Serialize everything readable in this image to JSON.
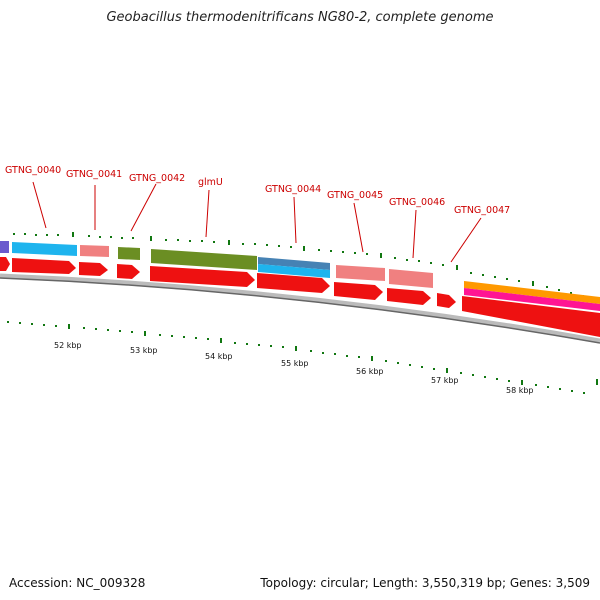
{
  "title": "Geobacillus thermodenitrificans NG80-2, complete genome",
  "footer": {
    "accession_label": "Accession: NC_009328",
    "summary": "Topology: circular; Length: 3,550,319 bp; Genes: 3,509"
  },
  "colors": {
    "cds": "#ee1111",
    "label": "#cc0000",
    "backbone": "#888888",
    "tick": "#117711"
  },
  "gene_labels": [
    "GTNG_0040",
    "GTNG_0041",
    "GTNG_0042",
    "glmU",
    "GTNG_0044",
    "GTNG_0045",
    "GTNG_0046",
    "GTNG_0047"
  ],
  "kbp_labels": [
    "52 kbp",
    "53 kbp",
    "54 kbp",
    "55 kbp",
    "56 kbp",
    "57 kbp",
    "58 kbp"
  ]
}
